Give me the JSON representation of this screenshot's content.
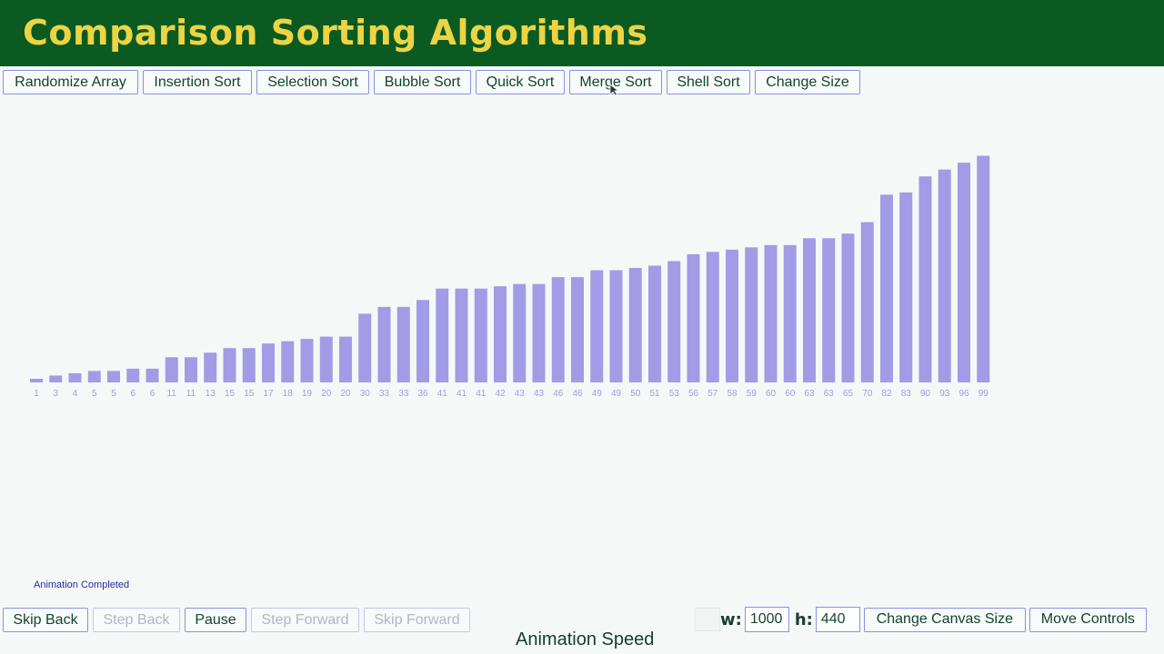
{
  "header": {
    "title": "Comparison Sorting Algorithms",
    "bg_color": "#0b5a22",
    "title_color": "#ecd444"
  },
  "toolbar": {
    "buttons": [
      "Randomize Array",
      "Insertion Sort",
      "Selection Sort",
      "Bubble Sort",
      "Quick Sort",
      "Merge Sort",
      "Shell Sort",
      "Change Size"
    ]
  },
  "bars": {
    "color": "#a29be6",
    "label_color": "#a29be6",
    "values": [
      1,
      3,
      4,
      5,
      5,
      6,
      6,
      11,
      11,
      13,
      15,
      15,
      17,
      18,
      19,
      20,
      20,
      30,
      33,
      33,
      36,
      41,
      41,
      41,
      42,
      43,
      43,
      46,
      46,
      49,
      49,
      50,
      51,
      53,
      56,
      57,
      58,
      59,
      60,
      60,
      63,
      63,
      65,
      70,
      82,
      83,
      90,
      93,
      96,
      99
    ]
  },
  "status": {
    "text": "Animation Completed"
  },
  "controls": {
    "left": [
      {
        "label": "Skip Back",
        "enabled": true
      },
      {
        "label": "Step Back",
        "enabled": false
      },
      {
        "label": "Pause",
        "enabled": true
      },
      {
        "label": "Step Forward",
        "enabled": false
      },
      {
        "label": "Skip Forward",
        "enabled": false
      }
    ],
    "width_label": "w:",
    "width_value": "1000",
    "height_label": "h:",
    "height_value": "440",
    "change_canvas": "Change Canvas Size",
    "move_controls": "Move Controls",
    "speed_label": "Animation Speed"
  }
}
